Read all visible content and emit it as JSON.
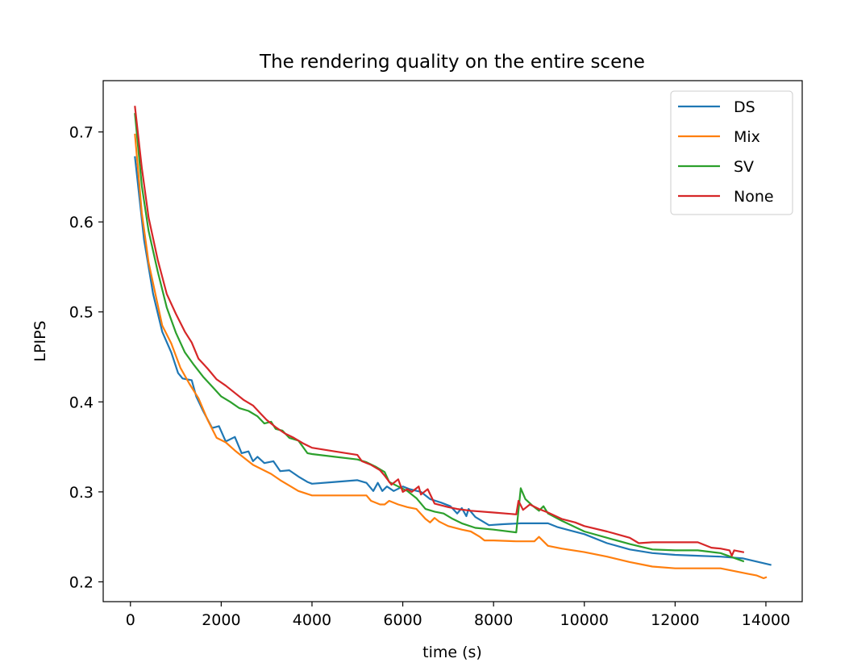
{
  "chart_data": {
    "type": "line",
    "title": "The rendering quality on the entire scene",
    "xlabel": "time (s)",
    "ylabel": "LPIPS",
    "xlim": [
      -600,
      14800
    ],
    "ylim": [
      0.178,
      0.757
    ],
    "xticks": [
      0,
      2000,
      4000,
      6000,
      8000,
      10000,
      12000,
      14000
    ],
    "xtick_labels": [
      "0",
      "2000",
      "4000",
      "6000",
      "8000",
      "10000",
      "12000",
      "14000"
    ],
    "yticks": [
      0.2,
      0.3,
      0.4,
      0.5,
      0.6,
      0.7
    ],
    "ytick_labels": [
      "0.2",
      "0.3",
      "0.4",
      "0.5",
      "0.6",
      "0.7"
    ],
    "grid": false,
    "legend_position": "top-right",
    "series": [
      {
        "name": "DS",
        "color": "#1f77b4",
        "points": [
          [
            100,
            0.672
          ],
          [
            300,
            0.58
          ],
          [
            500,
            0.52
          ],
          [
            700,
            0.478
          ],
          [
            900,
            0.455
          ],
          [
            1050,
            0.432
          ],
          [
            1150,
            0.426
          ],
          [
            1350,
            0.424
          ],
          [
            1450,
            0.406
          ],
          [
            1600,
            0.39
          ],
          [
            1800,
            0.371
          ],
          [
            1950,
            0.373
          ],
          [
            2100,
            0.356
          ],
          [
            2300,
            0.361
          ],
          [
            2450,
            0.343
          ],
          [
            2600,
            0.345
          ],
          [
            2700,
            0.334
          ],
          [
            2800,
            0.339
          ],
          [
            2950,
            0.332
          ],
          [
            3150,
            0.334
          ],
          [
            3300,
            0.323
          ],
          [
            3500,
            0.324
          ],
          [
            3700,
            0.317
          ],
          [
            3900,
            0.311
          ],
          [
            4000,
            0.309
          ],
          [
            4500,
            0.311
          ],
          [
            5000,
            0.313
          ],
          [
            5200,
            0.31
          ],
          [
            5350,
            0.301
          ],
          [
            5450,
            0.31
          ],
          [
            5550,
            0.301
          ],
          [
            5650,
            0.306
          ],
          [
            5800,
            0.301
          ],
          [
            6000,
            0.306
          ],
          [
            6150,
            0.303
          ],
          [
            6400,
            0.3
          ],
          [
            6600,
            0.292
          ],
          [
            6850,
            0.288
          ],
          [
            7050,
            0.284
          ],
          [
            7200,
            0.276
          ],
          [
            7300,
            0.282
          ],
          [
            7400,
            0.273
          ],
          [
            7450,
            0.281
          ],
          [
            7600,
            0.272
          ],
          [
            7900,
            0.263
          ],
          [
            8200,
            0.264
          ],
          [
            8600,
            0.265
          ],
          [
            9000,
            0.265
          ],
          [
            9200,
            0.265
          ],
          [
            9400,
            0.261
          ],
          [
            9700,
            0.257
          ],
          [
            10000,
            0.253
          ],
          [
            10500,
            0.243
          ],
          [
            11000,
            0.236
          ],
          [
            11500,
            0.232
          ],
          [
            12000,
            0.23
          ],
          [
            12500,
            0.229
          ],
          [
            13000,
            0.228
          ],
          [
            13500,
            0.226
          ],
          [
            14100,
            0.219
          ]
        ]
      },
      {
        "name": "Mix",
        "color": "#ff7f0e",
        "points": [
          [
            100,
            0.697
          ],
          [
            250,
            0.61
          ],
          [
            400,
            0.555
          ],
          [
            550,
            0.52
          ],
          [
            700,
            0.485
          ],
          [
            900,
            0.465
          ],
          [
            1100,
            0.438
          ],
          [
            1300,
            0.42
          ],
          [
            1500,
            0.404
          ],
          [
            1700,
            0.38
          ],
          [
            1900,
            0.36
          ],
          [
            2100,
            0.355
          ],
          [
            2300,
            0.346
          ],
          [
            2500,
            0.338
          ],
          [
            2700,
            0.33
          ],
          [
            2900,
            0.325
          ],
          [
            3100,
            0.32
          ],
          [
            3300,
            0.313
          ],
          [
            3500,
            0.307
          ],
          [
            3700,
            0.301
          ],
          [
            4000,
            0.296
          ],
          [
            4500,
            0.296
          ],
          [
            5000,
            0.296
          ],
          [
            5200,
            0.296
          ],
          [
            5300,
            0.29
          ],
          [
            5500,
            0.286
          ],
          [
            5600,
            0.286
          ],
          [
            5700,
            0.29
          ],
          [
            5900,
            0.286
          ],
          [
            6100,
            0.283
          ],
          [
            6300,
            0.281
          ],
          [
            6500,
            0.27
          ],
          [
            6600,
            0.266
          ],
          [
            6700,
            0.271
          ],
          [
            6800,
            0.267
          ],
          [
            7000,
            0.262
          ],
          [
            7300,
            0.258
          ],
          [
            7500,
            0.256
          ],
          [
            7700,
            0.25
          ],
          [
            7800,
            0.246
          ],
          [
            8000,
            0.246
          ],
          [
            8500,
            0.245
          ],
          [
            8900,
            0.245
          ],
          [
            9000,
            0.25
          ],
          [
            9200,
            0.24
          ],
          [
            9500,
            0.237
          ],
          [
            10000,
            0.233
          ],
          [
            10500,
            0.228
          ],
          [
            11000,
            0.222
          ],
          [
            11500,
            0.217
          ],
          [
            12000,
            0.215
          ],
          [
            12500,
            0.215
          ],
          [
            13000,
            0.215
          ],
          [
            13300,
            0.212
          ],
          [
            13600,
            0.209
          ],
          [
            13800,
            0.207
          ],
          [
            13950,
            0.204
          ],
          [
            14000,
            0.205
          ]
        ]
      },
      {
        "name": "SV",
        "color": "#2ca02c",
        "points": [
          [
            100,
            0.72
          ],
          [
            250,
            0.64
          ],
          [
            400,
            0.59
          ],
          [
            600,
            0.545
          ],
          [
            800,
            0.505
          ],
          [
            1000,
            0.477
          ],
          [
            1200,
            0.455
          ],
          [
            1400,
            0.441
          ],
          [
            1600,
            0.428
          ],
          [
            1800,
            0.417
          ],
          [
            2000,
            0.406
          ],
          [
            2200,
            0.4
          ],
          [
            2400,
            0.393
          ],
          [
            2600,
            0.39
          ],
          [
            2800,
            0.384
          ],
          [
            2950,
            0.376
          ],
          [
            3100,
            0.378
          ],
          [
            3200,
            0.37
          ],
          [
            3350,
            0.368
          ],
          [
            3500,
            0.36
          ],
          [
            3700,
            0.357
          ],
          [
            3900,
            0.343
          ],
          [
            4000,
            0.342
          ],
          [
            4500,
            0.339
          ],
          [
            5000,
            0.336
          ],
          [
            5200,
            0.333
          ],
          [
            5400,
            0.328
          ],
          [
            5600,
            0.322
          ],
          [
            5700,
            0.311
          ],
          [
            5900,
            0.306
          ],
          [
            6100,
            0.301
          ],
          [
            6300,
            0.293
          ],
          [
            6500,
            0.281
          ],
          [
            6700,
            0.278
          ],
          [
            6900,
            0.276
          ],
          [
            7100,
            0.27
          ],
          [
            7300,
            0.265
          ],
          [
            7600,
            0.26
          ],
          [
            8000,
            0.258
          ],
          [
            8500,
            0.255
          ],
          [
            8600,
            0.304
          ],
          [
            8700,
            0.292
          ],
          [
            8850,
            0.285
          ],
          [
            9000,
            0.279
          ],
          [
            9100,
            0.284
          ],
          [
            9200,
            0.276
          ],
          [
            9500,
            0.268
          ],
          [
            10000,
            0.256
          ],
          [
            10500,
            0.249
          ],
          [
            11000,
            0.242
          ],
          [
            11500,
            0.236
          ],
          [
            12000,
            0.235
          ],
          [
            12500,
            0.235
          ],
          [
            13000,
            0.232
          ],
          [
            13500,
            0.223
          ]
        ]
      },
      {
        "name": "None",
        "color": "#d62728",
        "points": [
          [
            100,
            0.728
          ],
          [
            250,
            0.66
          ],
          [
            400,
            0.605
          ],
          [
            600,
            0.558
          ],
          [
            800,
            0.52
          ],
          [
            1000,
            0.498
          ],
          [
            1200,
            0.478
          ],
          [
            1350,
            0.466
          ],
          [
            1500,
            0.448
          ],
          [
            1700,
            0.437
          ],
          [
            1900,
            0.425
          ],
          [
            2100,
            0.418
          ],
          [
            2300,
            0.41
          ],
          [
            2500,
            0.402
          ],
          [
            2700,
            0.396
          ],
          [
            2850,
            0.388
          ],
          [
            3000,
            0.38
          ],
          [
            3200,
            0.372
          ],
          [
            3400,
            0.365
          ],
          [
            3600,
            0.36
          ],
          [
            3800,
            0.354
          ],
          [
            4000,
            0.349
          ],
          [
            4500,
            0.345
          ],
          [
            5000,
            0.341
          ],
          [
            5100,
            0.334
          ],
          [
            5300,
            0.33
          ],
          [
            5500,
            0.324
          ],
          [
            5600,
            0.318
          ],
          [
            5750,
            0.308
          ],
          [
            5900,
            0.314
          ],
          [
            6000,
            0.3
          ],
          [
            6100,
            0.303
          ],
          [
            6200,
            0.3
          ],
          [
            6350,
            0.306
          ],
          [
            6400,
            0.297
          ],
          [
            6550,
            0.303
          ],
          [
            6700,
            0.287
          ],
          [
            7000,
            0.283
          ],
          [
            7200,
            0.281
          ],
          [
            7500,
            0.279
          ],
          [
            8000,
            0.277
          ],
          [
            8500,
            0.275
          ],
          [
            8550,
            0.29
          ],
          [
            8650,
            0.28
          ],
          [
            8800,
            0.286
          ],
          [
            9000,
            0.281
          ],
          [
            9200,
            0.277
          ],
          [
            9500,
            0.27
          ],
          [
            9800,
            0.266
          ],
          [
            10000,
            0.262
          ],
          [
            10500,
            0.256
          ],
          [
            11000,
            0.249
          ],
          [
            11200,
            0.243
          ],
          [
            11500,
            0.244
          ],
          [
            12000,
            0.244
          ],
          [
            12500,
            0.244
          ],
          [
            12800,
            0.238
          ],
          [
            13000,
            0.237
          ],
          [
            13200,
            0.235
          ],
          [
            13250,
            0.229
          ],
          [
            13300,
            0.235
          ],
          [
            13500,
            0.233
          ]
        ]
      }
    ]
  }
}
